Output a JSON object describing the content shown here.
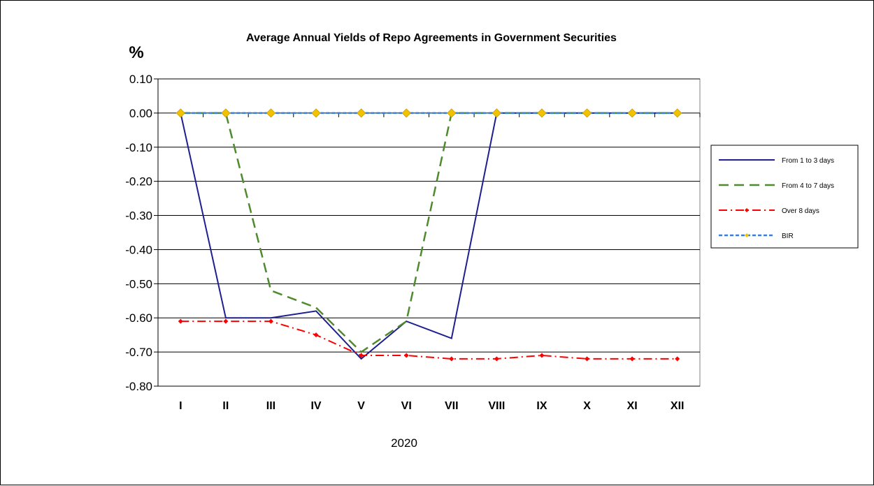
{
  "chart_data": {
    "type": "line",
    "title": "Average Annual Yields of Repo Agreements in Government Securities",
    "ylabel": "%",
    "xlabel": "2020",
    "categories": [
      "I",
      "II",
      "III",
      "IV",
      "V",
      "VI",
      "VII",
      "VIII",
      "IX",
      "X",
      "XI",
      "XII"
    ],
    "ylim": [
      -0.8,
      0.1
    ],
    "yticks": [
      "0.10",
      "0.00",
      "-0.10",
      "-0.20",
      "-0.30",
      "-0.40",
      "-0.50",
      "-0.60",
      "-0.70",
      "-0.80"
    ],
    "ytick_values": [
      0.1,
      0.0,
      -0.1,
      -0.2,
      -0.3,
      -0.4,
      -0.5,
      -0.6,
      -0.7,
      -0.8
    ],
    "grid": true,
    "legend_position": "right",
    "series": [
      {
        "name": "From 1 to 3 days",
        "color": "#1f1f8f",
        "style": "solid",
        "marker": "none",
        "values": [
          0.0,
          -0.6,
          -0.6,
          -0.58,
          -0.72,
          -0.61,
          -0.66,
          0.0,
          0.0,
          0.0,
          0.0,
          0.0
        ]
      },
      {
        "name": "From 4 to 7 days",
        "color": "#4e8a2e",
        "style": "dash",
        "marker": "none",
        "values": [
          0.0,
          0.0,
          -0.52,
          -0.57,
          -0.7,
          -0.61,
          0.0,
          0.0,
          0.0,
          0.0,
          0.0,
          0.0
        ]
      },
      {
        "name": "Over 8 days",
        "color": "#ff0000",
        "style": "dashdot",
        "marker": "diamond-small",
        "values": [
          -0.61,
          -0.61,
          -0.61,
          -0.65,
          -0.71,
          -0.71,
          -0.72,
          -0.72,
          -0.71,
          -0.72,
          -0.72,
          -0.72
        ]
      },
      {
        "name": "BIR",
        "color": "#3a7fd5",
        "style": "dotted",
        "marker": "diamond-large",
        "marker_color": "#f2c200",
        "values": [
          0.0,
          0.0,
          0.0,
          0.0,
          0.0,
          0.0,
          0.0,
          0.0,
          0.0,
          0.0,
          0.0,
          0.0
        ]
      }
    ]
  }
}
